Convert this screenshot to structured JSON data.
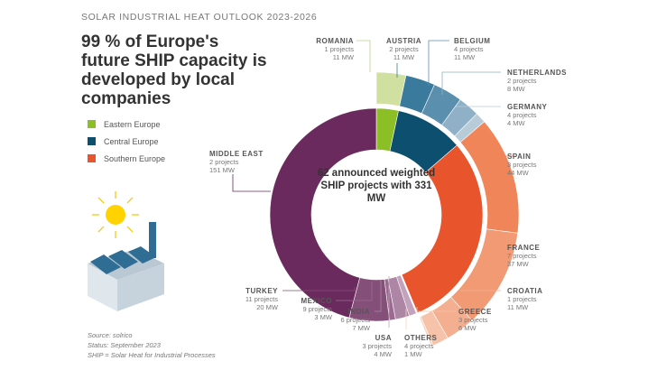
{
  "kicker": "SOLAR INDUSTRIAL HEAT OUTLOOK 2023-2026",
  "headline": "99 % of Europe's future SHIP capacity is developed by local companies",
  "legend": [
    {
      "label": "Eastern Europe",
      "color": "#8cbf26"
    },
    {
      "label": "Central Europe",
      "color": "#0d4f6e"
    },
    {
      "label": "Southern Europe",
      "color": "#e8552c"
    }
  ],
  "center_text": "62 announced weighted SHIP projects with 331 MW",
  "footer": {
    "source": "Source: solrico",
    "status": "Status: September 2023",
    "note": "SHIP = Solar Heat for Industrial Processes"
  },
  "chart_data": {
    "type": "donut",
    "unit": "MW",
    "outer_series": [
      {
        "name": "ROMANIA",
        "projects": "1 projects",
        "mw": 11,
        "mw_label": "11 MW",
        "region": "Eastern Europe",
        "color": "#cfe0a0"
      },
      {
        "name": "AUSTRIA",
        "projects": "2 projects",
        "mw": 11,
        "mw_label": "11 MW",
        "region": "Central Europe",
        "color": "#3a7a9c"
      },
      {
        "name": "BELGIUM",
        "projects": "4 projects",
        "mw": 11,
        "mw_label": "11 MW",
        "region": "Central Europe",
        "color": "#5b8fae"
      },
      {
        "name": "NETHERLANDS",
        "projects": "2 projects",
        "mw": 8,
        "mw_label": "8 MW",
        "region": "Central Europe",
        "color": "#8fb0c6"
      },
      {
        "name": "GERMANY",
        "projects": "4 projects",
        "mw": 4,
        "mw_label": "4 MW",
        "region": "Central Europe",
        "color": "#b8cbd9"
      },
      {
        "name": "SPAIN",
        "projects": "3 projects",
        "mw": 44,
        "mw_label": "44 MW",
        "region": "Southern Europe",
        "color": "#ef8558"
      },
      {
        "name": "FRANCE",
        "projects": "7 projects",
        "mw": 37,
        "mw_label": "37 MW",
        "region": "Southern Europe",
        "color": "#f19a74"
      },
      {
        "name": "CROATIA",
        "projects": "1 projects",
        "mw": 11,
        "mw_label": "11 MW",
        "region": "Southern Europe",
        "color": "#f4ae90"
      },
      {
        "name": "GREECE",
        "projects": "3 projects",
        "mw": 6,
        "mw_label": "6 MW",
        "region": "Southern Europe",
        "color": "#f6c2aa"
      },
      {
        "name": "OTHERS",
        "projects": "4 projects",
        "mw": 1,
        "mw_label": "1 MW",
        "region": "Southern Europe",
        "color": "#f8d3c2"
      }
    ],
    "inner_series": [
      {
        "name": "Eastern Europe",
        "mw": 11,
        "color": "#8cbf26"
      },
      {
        "name": "Central Europe",
        "mw": 34,
        "color": "#0d4f6e"
      },
      {
        "name": "Southern Europe",
        "mw": 99,
        "color": "#e8552c"
      },
      {
        "name": "USA",
        "projects": "3 projects",
        "mw": 4,
        "mw_label": "4 MW",
        "color": "#c2a3bb"
      },
      {
        "name": "INDIA",
        "projects": "6 projects",
        "mw": 7,
        "mw_label": "7 MW",
        "color": "#ad86a5"
      },
      {
        "name": "MEXICO",
        "projects": "9 projects",
        "mw": 3,
        "mw_label": "3 MW",
        "color": "#9a6a90"
      },
      {
        "name": "TURKEY",
        "projects": "11 projects",
        "mw": 20,
        "mw_label": "20 MW",
        "color": "#84507a"
      },
      {
        "name": "MIDDLE EAST",
        "projects": "2 projects",
        "mw": 151,
        "mw_label": "151 MW",
        "color": "#6b2a5e"
      }
    ]
  }
}
